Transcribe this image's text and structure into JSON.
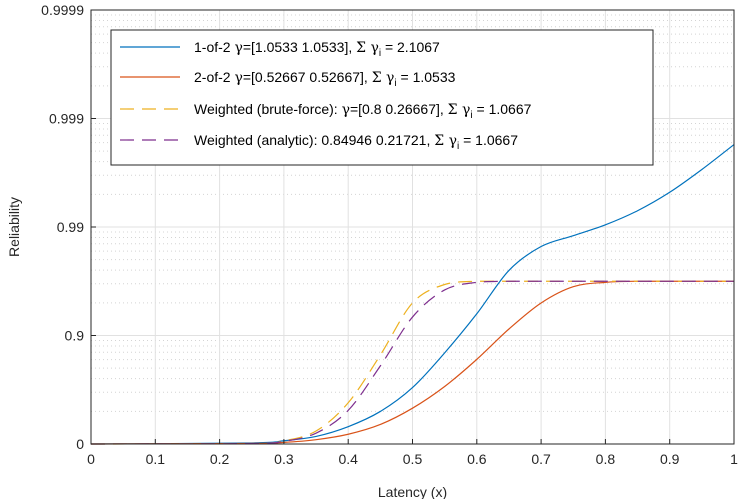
{
  "chart_data": {
    "type": "line",
    "xlabel": "Latency (x)",
    "ylabel": "Reliability",
    "xlim": [
      0,
      1
    ],
    "y_scale": "nines",
    "ylim_nines": [
      0,
      4
    ],
    "x_ticks": [
      0,
      0.1,
      0.2,
      0.3,
      0.4,
      0.5,
      0.6,
      0.7,
      0.8,
      0.9,
      1
    ],
    "x_tick_labels": [
      "0",
      "0.1",
      "0.2",
      "0.3",
      "0.4",
      "0.5",
      "0.6",
      "0.7",
      "0.8",
      "0.9",
      "1"
    ],
    "y_ticks_nines": [
      0,
      1,
      2,
      3,
      4
    ],
    "y_tick_labels": [
      "0",
      "0.9",
      "0.99",
      "0.999",
      "0.9999"
    ],
    "grid": true,
    "minor_grid": true,
    "legend_position": "top-left",
    "series": [
      {
        "name": "1-of-2",
        "legend_parts": [
          "1-of-2  ",
          "γ",
          "=[1.0533      1.0533], ",
          "Σ γ",
          "i",
          " = 2.1067"
        ],
        "color": "#0072BD",
        "dash": "solid",
        "x": [
          0,
          0.25,
          0.3,
          0.35,
          0.4,
          0.45,
          0.5,
          0.55,
          0.6,
          0.65,
          0.7,
          0.75,
          0.8,
          0.85,
          0.9,
          0.95,
          1
        ],
        "nines": [
          0,
          0.01,
          0.03,
          0.07,
          0.16,
          0.3,
          0.52,
          0.84,
          1.2,
          1.6,
          1.82,
          1.92,
          2.02,
          2.15,
          2.32,
          2.53,
          2.76
        ]
      },
      {
        "name": "2-of-2",
        "legend_parts": [
          "2-of-2  ",
          "γ",
          "=[0.52667      0.52667], ",
          "Σ γ",
          "i",
          " = 1.0533"
        ],
        "color": "#D95319",
        "dash": "solid",
        "x": [
          0,
          0.25,
          0.3,
          0.35,
          0.4,
          0.45,
          0.5,
          0.55,
          0.6,
          0.65,
          0.7,
          0.75,
          0.8,
          0.85,
          0.9,
          0.95,
          1
        ],
        "nines": [
          0,
          0.005,
          0.015,
          0.04,
          0.09,
          0.18,
          0.33,
          0.53,
          0.78,
          1.06,
          1.3,
          1.45,
          1.49,
          1.5,
          1.5,
          1.5,
          1.5
        ]
      },
      {
        "name": "Weighted (brute-force)",
        "legend_parts": [
          "Weighted (brute-force): ",
          "γ",
          "=[0.8      0.26667], ",
          "Σ γ",
          "i",
          " = 1.0667"
        ],
        "color": "#EDB120",
        "dash": "dashed",
        "x": [
          0,
          0.25,
          0.3,
          0.35,
          0.4,
          0.45,
          0.5,
          0.55,
          0.6,
          0.65,
          0.7,
          0.75,
          0.8,
          0.85,
          0.9,
          0.95,
          1
        ],
        "nines": [
          0,
          0.005,
          0.03,
          0.12,
          0.38,
          0.82,
          1.3,
          1.47,
          1.5,
          1.5,
          1.5,
          1.5,
          1.5,
          1.5,
          1.5,
          1.5,
          1.5
        ]
      },
      {
        "name": "Weighted (analytic)",
        "legend_parts": [
          "Weighted (analytic): 0.84946      0.21721, ",
          "Σ γ",
          "i",
          " = 1.0667"
        ],
        "color": "#7E2F8E",
        "dash": "dashed",
        "x": [
          0,
          0.25,
          0.3,
          0.35,
          0.4,
          0.45,
          0.5,
          0.55,
          0.6,
          0.65,
          0.7,
          0.75,
          0.8,
          0.85,
          0.9,
          0.95,
          1
        ],
        "nines": [
          0,
          0.005,
          0.025,
          0.1,
          0.31,
          0.72,
          1.17,
          1.42,
          1.49,
          1.5,
          1.5,
          1.5,
          1.5,
          1.5,
          1.5,
          1.5,
          1.5
        ]
      }
    ]
  }
}
